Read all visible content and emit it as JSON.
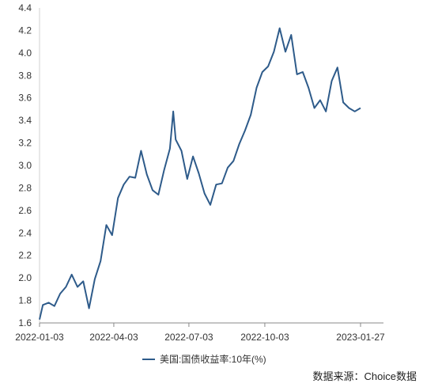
{
  "chart_data": {
    "type": "line",
    "title": "",
    "xlabel": "",
    "ylabel": "",
    "ylim": [
      1.6,
      4.4
    ],
    "y_ticks": [
      "1.6",
      "1.8",
      "2.0",
      "2.2",
      "2.4",
      "2.6",
      "2.8",
      "3.0",
      "3.2",
      "3.4",
      "3.6",
      "3.8",
      "4.0",
      "4.2",
      "4.4"
    ],
    "x_ticks": [
      "2022-01-03",
      "2022-04-03",
      "2022-07-03",
      "2022-10-03",
      "2023-01-27"
    ],
    "grid": false,
    "legend_position": "bottom",
    "series": [
      {
        "name": "美国:国债收益率:10年(%)",
        "color": "#2e5b8a",
        "x": [
          "2022-01-03",
          "2022-01-07",
          "2022-01-14",
          "2022-01-21",
          "2022-01-28",
          "2022-02-04",
          "2022-02-11",
          "2022-02-18",
          "2022-02-25",
          "2022-03-04",
          "2022-03-11",
          "2022-03-18",
          "2022-03-25",
          "2022-04-01",
          "2022-04-08",
          "2022-04-15",
          "2022-04-22",
          "2022-04-29",
          "2022-05-06",
          "2022-05-13",
          "2022-05-20",
          "2022-05-27",
          "2022-06-03",
          "2022-06-10",
          "2022-06-14",
          "2022-06-17",
          "2022-06-24",
          "2022-07-01",
          "2022-07-08",
          "2022-07-15",
          "2022-07-22",
          "2022-07-29",
          "2022-08-05",
          "2022-08-12",
          "2022-08-19",
          "2022-08-26",
          "2022-09-02",
          "2022-09-09",
          "2022-09-16",
          "2022-09-23",
          "2022-09-30",
          "2022-10-07",
          "2022-10-14",
          "2022-10-21",
          "2022-10-28",
          "2022-11-04",
          "2022-11-11",
          "2022-11-18",
          "2022-11-25",
          "2022-12-02",
          "2022-12-09",
          "2022-12-16",
          "2022-12-23",
          "2022-12-30",
          "2023-01-06",
          "2023-01-13",
          "2023-01-20",
          "2023-01-27"
        ],
        "values": [
          1.63,
          1.76,
          1.78,
          1.75,
          1.86,
          1.92,
          2.03,
          1.92,
          1.97,
          1.73,
          1.99,
          2.15,
          2.47,
          2.38,
          2.71,
          2.83,
          2.9,
          2.89,
          3.13,
          2.92,
          2.78,
          2.74,
          2.96,
          3.15,
          3.48,
          3.23,
          3.13,
          2.88,
          3.08,
          2.93,
          2.75,
          2.65,
          2.83,
          2.84,
          2.98,
          3.04,
          3.19,
          3.31,
          3.45,
          3.69,
          3.83,
          3.88,
          4.01,
          4.22,
          4.01,
          4.16,
          3.81,
          3.83,
          3.69,
          3.51,
          3.58,
          3.48,
          3.75,
          3.87,
          3.56,
          3.51,
          3.48,
          3.51
        ]
      }
    ]
  },
  "source": "数据来源：Choice数据"
}
